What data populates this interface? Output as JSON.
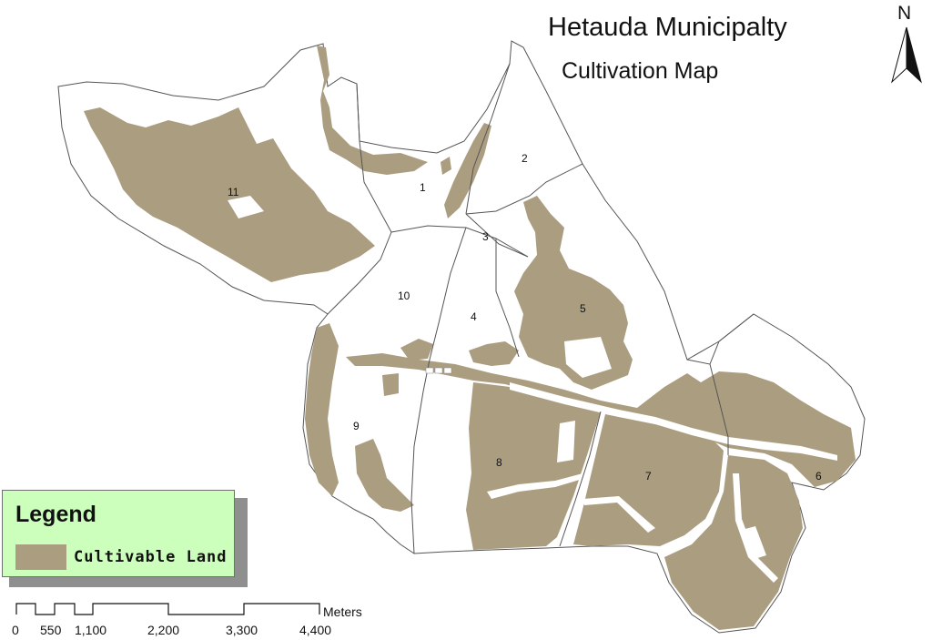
{
  "map": {
    "title": "Hetauda Municipalty",
    "subtitle": "Cultivation Map",
    "north_label": "N",
    "colors": {
      "cultivable": "#ab9d80",
      "boundary": "#555555",
      "legend_bg": "#ccffbb"
    },
    "districts": [
      {
        "id": "1",
        "label": "1"
      },
      {
        "id": "2",
        "label": "2"
      },
      {
        "id": "3",
        "label": "3"
      },
      {
        "id": "4",
        "label": "4"
      },
      {
        "id": "5",
        "label": "5"
      },
      {
        "id": "6",
        "label": "6"
      },
      {
        "id": "7",
        "label": "7"
      },
      {
        "id": "8",
        "label": "8"
      },
      {
        "id": "9",
        "label": "9"
      },
      {
        "id": "10",
        "label": "10"
      },
      {
        "id": "11",
        "label": "11"
      }
    ]
  },
  "legend": {
    "title": "Legend",
    "items": [
      {
        "label": "Cultivable Land",
        "color": "#ab9d80"
      }
    ]
  },
  "scale_bar": {
    "unit": "Meters",
    "ticks": [
      "0",
      "550",
      "1,100",
      "2,200",
      "3,300",
      "4,400"
    ]
  }
}
